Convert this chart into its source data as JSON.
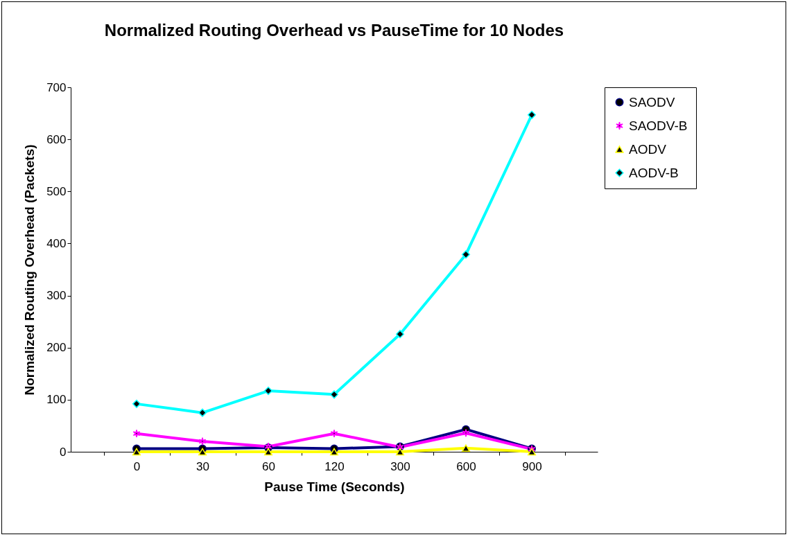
{
  "chart_data": {
    "type": "line",
    "title": "Normalized Routing Overhead vs PauseTime for 10 Nodes",
    "xlabel": "Pause Time (Seconds)",
    "ylabel": "Normalized Routing Overhead (Packets)",
    "categories": [
      "0",
      "30",
      "60",
      "120",
      "300",
      "600",
      "900"
    ],
    "ylim": [
      0,
      700
    ],
    "yticks": [
      0,
      100,
      200,
      300,
      400,
      500,
      600,
      700
    ],
    "grid": false,
    "legend": "right",
    "series": [
      {
        "name": "SAODV",
        "color": "#000080",
        "marker": "circle",
        "values": [
          6,
          6,
          8,
          6,
          10,
          43,
          6
        ]
      },
      {
        "name": "SAODV-B",
        "color": "#ff00ff",
        "marker": "cross",
        "values": [
          35,
          20,
          10,
          35,
          9,
          36,
          5
        ]
      },
      {
        "name": "AODV",
        "color": "#ffff00",
        "marker": "triangle",
        "values": [
          0,
          0,
          0,
          0,
          0,
          7,
          0
        ]
      },
      {
        "name": "AODV-B",
        "color": "#00ffff",
        "marker": "diamond",
        "values": [
          92,
          75,
          117,
          110,
          226,
          379,
          647
        ]
      }
    ]
  }
}
